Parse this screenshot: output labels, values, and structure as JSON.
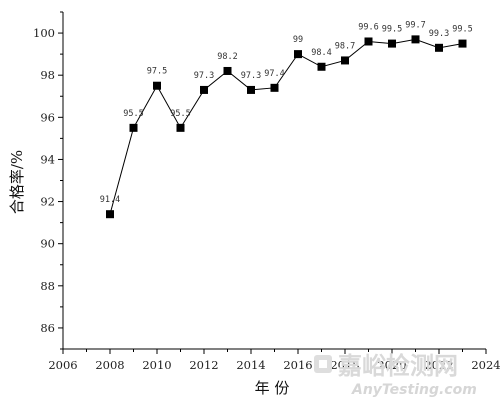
{
  "chart_data": {
    "type": "line",
    "title": "",
    "xlabel": "年 份",
    "ylabel": "合格率/%",
    "xlim": [
      2006,
      2024
    ],
    "ylim": [
      85,
      101
    ],
    "x_ticks": [
      2006,
      2008,
      2010,
      2012,
      2014,
      2016,
      2018,
      2020,
      2022,
      2024
    ],
    "y_ticks": [
      86,
      88,
      90,
      92,
      94,
      96,
      98,
      100
    ],
    "x_tick_labels": [
      "2006",
      "2008",
      "2010",
      "2012",
      "2014",
      "2016",
      "2018",
      "2020",
      "2022",
      "2024"
    ],
    "y_tick_labels": [
      "86",
      "88",
      "90",
      "92",
      "94",
      "96",
      "98",
      "100"
    ],
    "grid": false,
    "legend": "none",
    "series": [
      {
        "marker": "square",
        "color": "#000000",
        "x": [
          2008,
          2009,
          2010,
          2011,
          2012,
          2013,
          2014,
          2015,
          2016,
          2017,
          2018,
          2019,
          2020,
          2021,
          2022,
          2023
        ],
        "y": [
          91.4,
          95.5,
          97.5,
          95.5,
          97.3,
          98.2,
          97.3,
          97.4,
          99,
          98.4,
          98.7,
          99.6,
          99.5,
          99.7,
          99.3,
          99.5
        ],
        "labels": [
          "91.4",
          "95.5",
          "97.5",
          "95.5",
          "97.3",
          "98.2",
          "97.3",
          "97.4",
          "99",
          "98.4",
          "98.7",
          "99.6",
          "99.5",
          "99.7",
          "99.3",
          "99.5"
        ]
      }
    ]
  },
  "watermark": {
    "text_cn": "嘉峪检测网",
    "text_en": "AnyTesting.com"
  }
}
